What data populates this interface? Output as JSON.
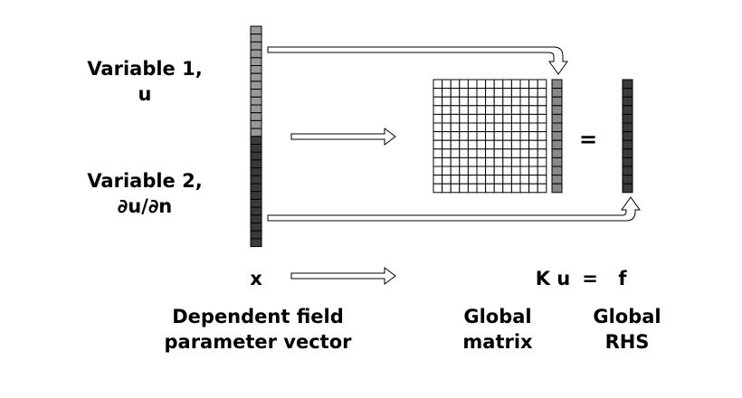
{
  "labels": {
    "var1_line1": "Variable 1,",
    "var1_line2": "u",
    "var2_line1": "Variable 2,",
    "var2_line2": "∂u/∂n",
    "x": "x",
    "equation_lhs": "K u",
    "equation_eq": "=",
    "equation_rhs": "f",
    "matrix_equals": "=",
    "caption_vector_1": "Dependent field",
    "caption_vector_2": "parameter vector",
    "caption_matrix_1": "Global",
    "caption_matrix_2": "matrix",
    "caption_rhs_1": "Global",
    "caption_rhs_2": "RHS"
  },
  "structure": {
    "vector_cells_variable1": 14,
    "vector_cells_variable2": 14,
    "matrix_rows": 13,
    "matrix_cols": 13,
    "u_vector_cells": 13,
    "rhs_vector_cells": 13
  },
  "colors": {
    "variable1_fill": "#999999",
    "variable2_fill": "#3a3a3a",
    "u_fill": "#888888",
    "rhs_fill": "#3a3a3a",
    "stroke": "#000000"
  }
}
